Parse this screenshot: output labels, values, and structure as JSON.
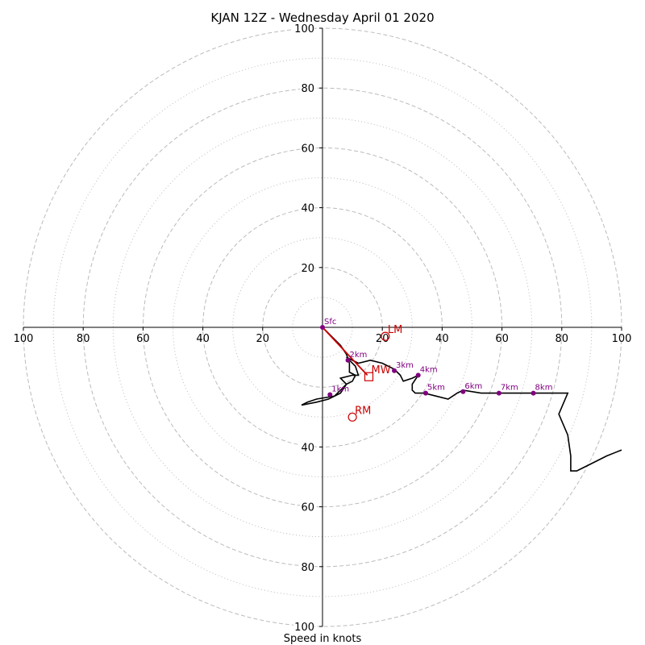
{
  "chart_data": {
    "type": "hodograph",
    "title": "KJAN 12Z - Wednesday April 01 2020",
    "xlabel": "Speed in knots",
    "axis_range": [
      -100,
      100
    ],
    "ring_major": [
      20,
      40,
      60,
      80,
      100
    ],
    "ring_minor": [
      10,
      30,
      50,
      70,
      90
    ],
    "x_ticks": [
      {
        "v": -100,
        "label": "100"
      },
      {
        "v": -80,
        "label": "80"
      },
      {
        "v": -60,
        "label": "60"
      },
      {
        "v": -40,
        "label": "40"
      },
      {
        "v": -20,
        "label": "20"
      },
      {
        "v": 20,
        "label": "20"
      },
      {
        "v": 40,
        "label": "40"
      },
      {
        "v": 60,
        "label": "60"
      },
      {
        "v": 80,
        "label": "80"
      },
      {
        "v": 100,
        "label": "100"
      }
    ],
    "y_ticks": [
      {
        "v": 100,
        "label": "100"
      },
      {
        "v": 80,
        "label": "80"
      },
      {
        "v": 60,
        "label": "60"
      },
      {
        "v": 40,
        "label": "40"
      },
      {
        "v": 20,
        "label": "20"
      },
      {
        "v": -40,
        "label": "40"
      },
      {
        "v": -60,
        "label": "60"
      },
      {
        "v": -80,
        "label": "80"
      },
      {
        "v": -100,
        "label": "100"
      }
    ],
    "hodograph_line": {
      "color": "#000000",
      "points": [
        [
          0,
          0
        ],
        [
          3,
          -3
        ],
        [
          6,
          -6
        ],
        [
          8,
          -9
        ],
        [
          9,
          -12
        ],
        [
          9,
          -15
        ],
        [
          11,
          -16
        ],
        [
          10,
          -18
        ],
        [
          8,
          -19
        ],
        [
          6,
          -22
        ],
        [
          2,
          -24
        ],
        [
          -2,
          -25
        ],
        [
          -7,
          -26
        ],
        [
          -5,
          -25
        ],
        [
          -2,
          -24
        ],
        [
          4,
          -23
        ],
        [
          6,
          -21
        ],
        [
          8,
          -19
        ],
        [
          6,
          -17
        ],
        [
          10,
          -16
        ],
        [
          12,
          -16
        ],
        [
          11,
          -13
        ],
        [
          8,
          -10
        ],
        [
          12,
          -12
        ],
        [
          16,
          -11
        ],
        [
          20,
          -12
        ],
        [
          24,
          -14
        ],
        [
          26,
          -16
        ],
        [
          27,
          -18
        ],
        [
          30,
          -17
        ],
        [
          32,
          -16
        ],
        [
          30,
          -19
        ],
        [
          30,
          -21
        ],
        [
          31,
          -22
        ],
        [
          34,
          -22
        ],
        [
          38,
          -23
        ],
        [
          42,
          -24
        ],
        [
          45,
          -22
        ],
        [
          47,
          -21
        ],
        [
          53,
          -22
        ],
        [
          58,
          -22
        ],
        [
          64,
          -22
        ],
        [
          70,
          -22
        ],
        [
          76,
          -22
        ],
        [
          82,
          -22
        ],
        [
          79,
          -29
        ],
        [
          82,
          -36
        ],
        [
          83,
          -43
        ],
        [
          83,
          -48
        ],
        [
          85,
          -48
        ],
        [
          87,
          -47
        ],
        [
          91,
          -45
        ],
        [
          95,
          -43
        ],
        [
          100,
          -41
        ]
      ]
    },
    "height_markers": {
      "color": "#800080",
      "points": [
        {
          "label": "Sfc",
          "u": 0,
          "v": 0
        },
        {
          "label": "1km",
          "u": 2.5,
          "v": -22.5
        },
        {
          "label": "2km",
          "u": 8.5,
          "v": -11
        },
        {
          "label": "3km",
          "u": 24,
          "v": -14.5
        },
        {
          "label": "4km",
          "u": 32,
          "v": -16
        },
        {
          "label": "5km",
          "u": 34.5,
          "v": -22
        },
        {
          "label": "6km",
          "u": 47,
          "v": -21.5
        },
        {
          "label": "7km",
          "u": 59,
          "v": -22
        },
        {
          "label": "8km",
          "u": 70.5,
          "v": -22
        }
      ]
    },
    "mean_wind_vector": {
      "color": "#cc0000",
      "to": [
        15,
        -16
      ]
    },
    "storm_motion": [
      {
        "label": "LM",
        "u": 21,
        "v": -3,
        "marker": "circle",
        "color": "#cc0000"
      },
      {
        "label": "MW",
        "u": 15.5,
        "v": -16.5,
        "marker": "square",
        "color": "#cc0000"
      },
      {
        "label": "RM",
        "u": 10,
        "v": -30,
        "marker": "circle",
        "color": "#cc0000"
      }
    ],
    "grid": true,
    "grid_color": "#bbbbbb"
  }
}
